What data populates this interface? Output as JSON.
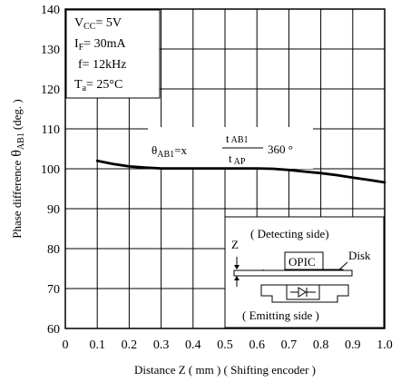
{
  "chart_data": {
    "type": "line",
    "title": "",
    "xlabel": "Distance Z ( mm ) ( Shifting encoder )",
    "ylabel_main": "Phase difference",
    "ylabel_symbol": "θ",
    "ylabel_sub": "AB1",
    "ylabel_unit": "(deg. )",
    "xlim": [
      0,
      1.0
    ],
    "ylim": [
      60,
      140
    ],
    "x_ticks": [
      "0",
      "0.1",
      "0.2",
      "0.3",
      "0.4",
      "0.5",
      "0.6",
      "0.7",
      "0.8",
      "0.9",
      "1.0"
    ],
    "y_ticks": [
      "60",
      "70",
      "80",
      "90",
      "100",
      "110",
      "120",
      "130",
      "140"
    ],
    "grid": true,
    "series": [
      {
        "x": [
          0.1,
          0.15,
          0.2,
          0.25,
          0.3,
          0.35,
          0.4,
          0.45,
          0.5,
          0.55,
          0.6,
          0.65,
          0.7,
          0.75,
          0.8,
          0.85,
          0.9,
          0.95,
          1.0
        ],
        "y": [
          102,
          101.2,
          100.6,
          100.3,
          100.1,
          100.1,
          100.1,
          100.1,
          100.1,
          100.1,
          100.1,
          100.0,
          99.7,
          99.3,
          98.9,
          98.4,
          97.8,
          97.2,
          96.6
        ]
      }
    ],
    "conditions": [
      {
        "main": "V",
        "sub": "CC",
        "rest": "= 5V"
      },
      {
        "main": "I",
        "sub": "F",
        "rest": "= 30mA"
      },
      {
        "main": "f",
        "sub": "",
        "rest": "= 12kHz"
      },
      {
        "main": "T",
        "sub": "a",
        "rest": "= 25°C"
      }
    ],
    "formula": {
      "lhs": "θ",
      "lhs_sub": "AB1",
      "eq": "=x",
      "num": "t",
      "num_sub": "AB1",
      "den": "t",
      "den_sub": "AP",
      "tail": "360 °"
    },
    "diagram": {
      "detecting_label": "( Detecting side)",
      "emitting_label": "( Emitting side )",
      "opic_label": "OPIC",
      "disk_label": "Disk",
      "z_label": "Z"
    }
  }
}
